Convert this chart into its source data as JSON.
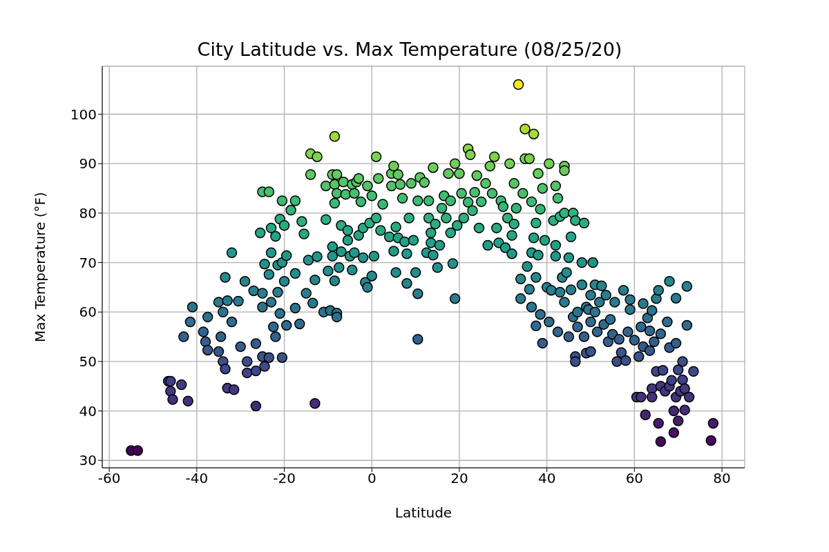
{
  "chart_data": {
    "type": "scatter",
    "title": "City Latitude vs. Max Temperature (08/25/20)",
    "xlabel": "Latitude",
    "ylabel": "Max Temperature (°F)",
    "x": [
      -55,
      -53.5,
      -46.5,
      -46,
      -46,
      -45.5,
      -43.5,
      -43,
      -42,
      -41.5,
      -41,
      -38.5,
      -38,
      -37.5,
      -37.5,
      -35,
      -35,
      -34.5,
      -34,
      -34,
      -33.5,
      -33.5,
      -33,
      -33,
      -32,
      -32,
      -31.5,
      -30.5,
      -30,
      -29,
      -28.5,
      -28.5,
      -27,
      -26.5,
      -26.5,
      -26.5,
      -25.5,
      -25,
      -25,
      -25,
      -25,
      -24.5,
      -24.5,
      -23.5,
      -23.5,
      -23.5,
      -23,
      -23,
      -23,
      -22.5,
      -22,
      -22,
      -21.5,
      -21.5,
      -21,
      -21,
      -20.5,
      -20.5,
      -20.5,
      -20,
      -20,
      -19.5,
      -19.5,
      -18.5,
      -17.5,
      -17.5,
      -17.5,
      -16.5,
      -16,
      -15.5,
      -15,
      -14.5,
      -14,
      -14,
      -13.5,
      -13,
      -13,
      -12.5,
      -12.5,
      -11,
      -10.5,
      -10.5,
      -10,
      -9.5,
      -9,
      -9,
      -9,
      -8.5,
      -8.5,
      -8.5,
      -8.5,
      -8,
      -8,
      -8,
      -8,
      -7.5,
      -7,
      -7,
      -6.5,
      -6,
      -5.5,
      -5.5,
      -5,
      -4.5,
      -4.5,
      -4,
      -4,
      -3.5,
      -3,
      -3,
      -2.5,
      -2,
      -2,
      -1.5,
      -1,
      -1,
      -0.5,
      0,
      0,
      0.5,
      1,
      1,
      1.5,
      2,
      2.5,
      4,
      4.5,
      4.5,
      5,
      5,
      5.5,
      5.5,
      6,
      6,
      6.5,
      7,
      7.5,
      8,
      8,
      8.5,
      9,
      9.5,
      10,
      10.5,
      10.5,
      10.5,
      11,
      12,
      12.5,
      13,
      13,
      13.5,
      13.5,
      14,
      14,
      14.5,
      15,
      15.5,
      16,
      16.5,
      17,
      17.5,
      18,
      18,
      18.5,
      19,
      19,
      19.5,
      20,
      20.5,
      21,
      22,
      22,
      22.5,
      23,
      23.5,
      24,
      24.5,
      25,
      26,
      26.5,
      27,
      27.5,
      28,
      28.5,
      29,
      29.5,
      30,
      30.5,
      31,
      31.5,
      32,
      32.5,
      32.5,
      32,
      33,
      33.5,
      34,
      34,
      34.5,
      35,
      35,
      35.5,
      36,
      36,
      36.5,
      36.5,
      36.5,
      37,
      37,
      37.5,
      37.5,
      37.5,
      38,
      38,
      38.5,
      38.5,
      39,
      39,
      39.5,
      40,
      40.5,
      40.5,
      41,
      41.5,
      42,
      42,
      42,
      42.5,
      42.5,
      43,
      43,
      43.5,
      44,
      44,
      44,
      44,
      44.5,
      45,
      45,
      45.5,
      45.5,
      46,
      46,
      46.5,
      46.5,
      46.5,
      47,
      47,
      48,
      48,
      48.5,
      48.5,
      49,
      49,
      49.5,
      50,
      50,
      50,
      50.5,
      51,
      51,
      51.5,
      52,
      52.5,
      53,
      53.5,
      54,
      54.5,
      55,
      55.5,
      56,
      56.5,
      57,
      57.5,
      58,
      58.5,
      59,
      59,
      60,
      60.5,
      61,
      61.5,
      61.5,
      62,
      62,
      62.5,
      63,
      63.5,
      63.5,
      64,
      64,
      64,
      64.5,
      65,
      65,
      65.5,
      65.5,
      66,
      66,
      66,
      66.5,
      67,
      67.5,
      68,
      68,
      68,
      68.5,
      69,
      69,
      69.5,
      69.5,
      69.5,
      70,
      70,
      70.5,
      71,
      71,
      71.5,
      71.5,
      72,
      72,
      72.5,
      73.5,
      77.5,
      78
    ],
    "values": [
      32,
      32,
      46,
      44,
      46,
      42.3,
      45.3,
      55,
      42,
      58,
      61,
      56,
      54,
      59,
      52.3,
      52,
      62,
      55,
      60,
      50,
      48.5,
      67,
      44.6,
      62.3,
      58,
      72,
      44.3,
      62.2,
      53,
      66.2,
      47.7,
      50,
      64.3,
      41,
      53.6,
      48.1,
      76,
      84.3,
      63.8,
      61,
      51,
      69.7,
      49,
      84.3,
      67.6,
      50.8,
      77,
      72,
      62,
      57,
      55,
      75.3,
      64,
      69.5,
      59.7,
      78.8,
      82.5,
      70,
      50.8,
      77.5,
      66.2,
      71.4,
      57.3,
      80.6,
      82.5,
      67.8,
      60.8,
      57.6,
      78.3,
      75.8,
      63.8,
      70.5,
      92,
      87.8,
      61.8,
      66.5,
      41.5,
      91.4,
      71.2,
      60,
      78.7,
      85.5,
      68.3,
      60.3,
      87.8,
      73.2,
      71.3,
      95.5,
      82,
      85.8,
      66.3,
      87.8,
      84,
      59.8,
      59,
      69,
      77.5,
      72.2,
      86.3,
      83.8,
      76.5,
      74.5,
      71.3,
      85.8,
      68.5,
      84,
      72,
      86.3,
      75.5,
      87,
      82.3,
      77,
      71,
      66,
      85.5,
      65,
      78,
      83.5,
      67.3,
      71.3,
      79,
      91.4,
      87,
      76.5,
      81.8,
      75.2,
      85.5,
      88,
      89.5,
      72.3,
      77.2,
      68,
      87.8,
      75,
      85.8,
      83,
      74.2,
      71.8,
      65.8,
      79,
      86,
      74.5,
      68,
      82.5,
      63.7,
      54.5,
      87.2,
      86.2,
      72,
      82.5,
      79,
      76,
      74,
      89.2,
      71.5,
      77.8,
      69,
      73.5,
      81,
      83.5,
      79,
      88,
      82.5,
      76,
      69.8,
      90,
      62.7,
      77.5,
      88,
      84,
      79,
      93,
      82.2,
      91.8,
      80.5,
      84.2,
      87.6,
      77,
      82.3,
      86,
      73.5,
      89.5,
      84,
      91.4,
      77,
      74,
      82.5,
      81.3,
      73,
      79,
      90,
      75.5,
      77.8,
      86,
      71.8,
      81,
      106,
      62.7,
      66.7,
      84,
      97,
      91,
      69.2,
      64.6,
      91,
      72,
      82.3,
      61,
      75,
      96,
      57.2,
      78,
      67,
      88,
      71.5,
      59.5,
      80.8,
      85,
      53.7,
      74.5,
      65,
      90,
      58,
      64.4,
      78.5,
      71.3,
      85.5,
      73.5,
      83,
      56,
      79.3,
      64,
      67,
      89.5,
      88.6,
      80,
      62,
      68,
      71,
      55,
      75.2,
      64.5,
      80,
      59,
      78.5,
      51,
      50,
      57,
      60,
      70,
      65.5,
      78,
      55,
      61,
      51.7,
      60.5,
      63.4,
      58,
      52,
      70,
      65.5,
      60,
      56,
      62,
      65.3,
      57.5,
      63.4,
      54,
      58.5,
      55.5,
      62,
      50,
      54.5,
      51.8,
      64.4,
      50.2,
      56,
      62.5,
      60.5,
      54.3,
      42.8,
      51,
      57,
      42.8,
      61.7,
      53,
      39.2,
      58.8,
      52.2,
      56.2,
      60.3,
      44.5,
      42.8,
      54,
      62.7,
      48,
      64.4,
      37.5,
      33.8,
      45,
      55.6,
      48.2,
      44,
      58,
      66.2,
      52.8,
      45,
      46.2,
      40,
      35.6,
      53.7,
      62.8,
      42.8,
      48.3,
      38,
      44,
      50,
      46.3,
      40.2,
      44.5,
      65.2,
      57.3,
      42.8,
      48,
      34,
      37.5
    ],
    "xlim": [
      -61.6,
      85.2
    ],
    "xticks": [
      -60,
      -40,
      -20,
      0,
      20,
      40,
      60,
      80
    ],
    "ylim": [
      28.5,
      109.7
    ],
    "yticks": [
      30,
      40,
      50,
      60,
      70,
      80,
      90,
      100
    ],
    "grid": true,
    "marker": "circle"
  }
}
